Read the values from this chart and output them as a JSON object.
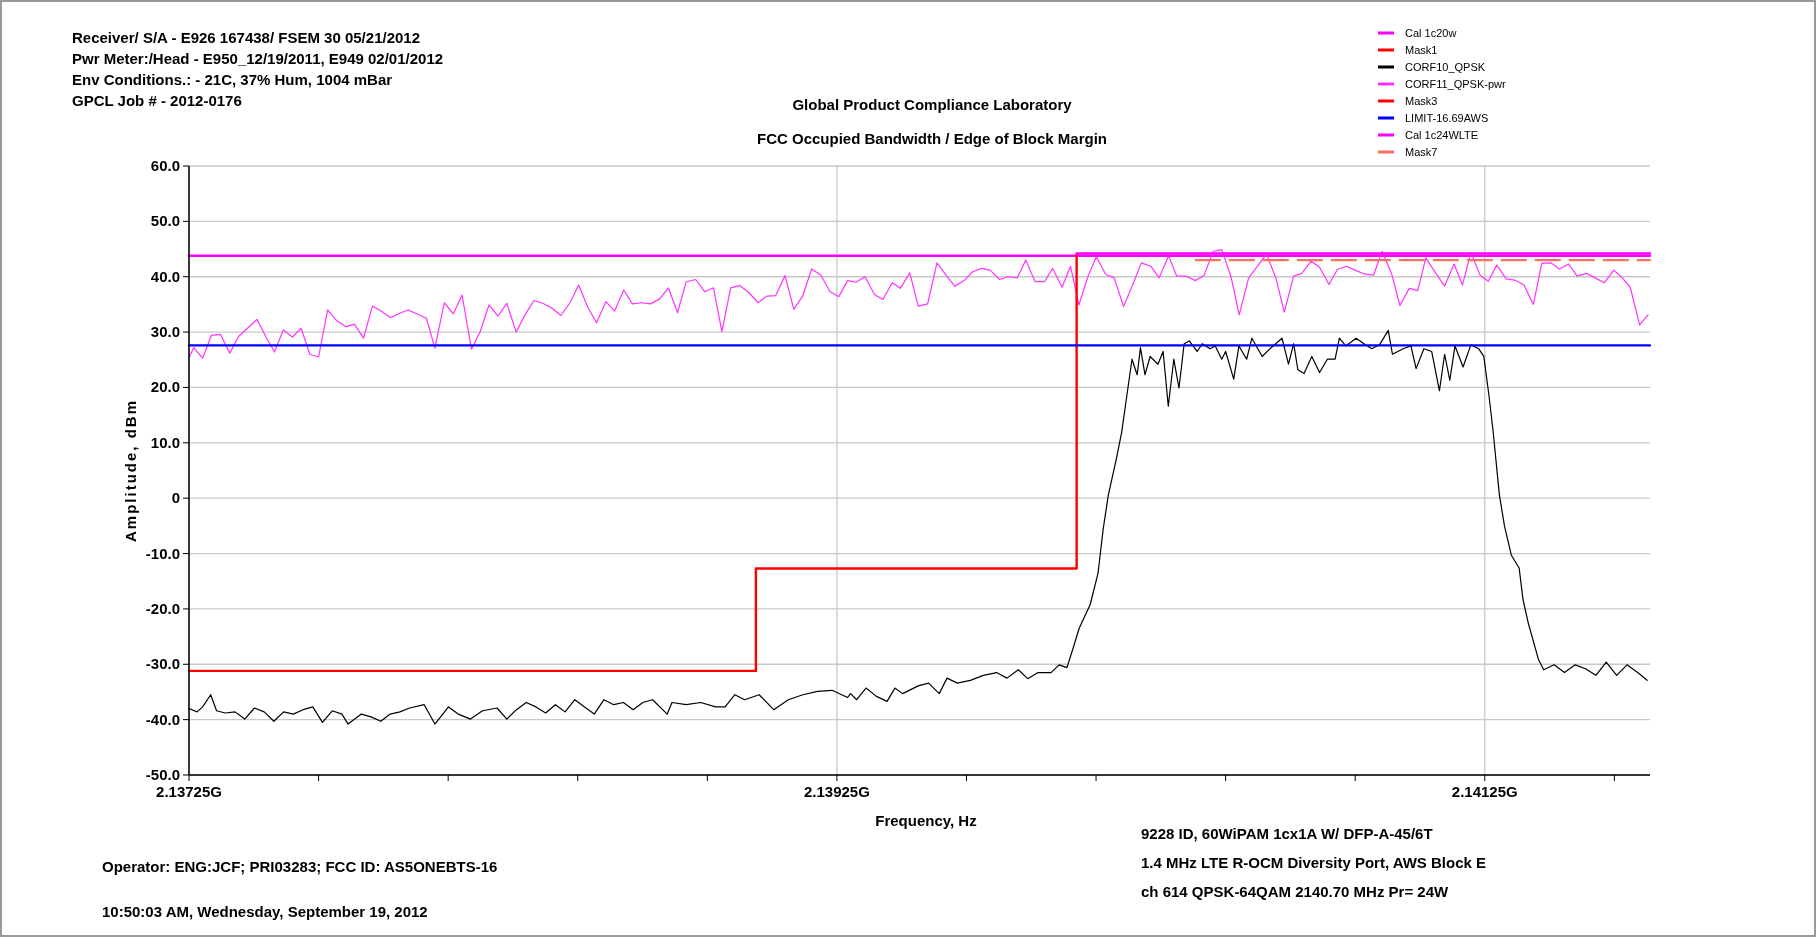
{
  "chart_data": {
    "type": "line",
    "title": "Global Product Compliance Laboratory",
    "subtitle": "FCC Occupied Bandwidth / Edge of Block Margin",
    "xlabel": "Frequency, Hz",
    "ylabel": "Amplitude, dBm",
    "annotations": [
      "Receiver/ S/A - E926 167438/ FSEM 30 05/21/2012",
      "Pwr Meter:/Head - E950_12/19/2011, E949 02/01/2012",
      "Env Conditions.: - 21C, 37% Hum,  1004 mBar",
      "GPCL Job #  - 2012-0176",
      "Operator:  ENG:JCF; PRI03283;  FCC ID: AS5ONEBTS-16",
      "10:50:03 AM, Wednesday, September 19, 2012",
      "9228 ID, 60WiPAM 1cx1A W/ DFP-A-45/6T",
      "1.4 MHz LTE R-OCM Diversity Port, AWS Block E",
      "ch 614 QPSK-64QAM 2140.70 MHz Pr= 24W"
    ],
    "xlim": [
      2.13725,
      2.14176
    ],
    "xticks": [
      {
        "value": 2.13725,
        "label": "2.13725G"
      },
      {
        "value": 2.13765,
        "label": null
      },
      {
        "value": 2.13805,
        "label": null
      },
      {
        "value": 2.13845,
        "label": null
      },
      {
        "value": 2.13885,
        "label": null
      },
      {
        "value": 2.13925,
        "label": "2.13925G"
      },
      {
        "value": 2.13965,
        "label": null
      },
      {
        "value": 2.14005,
        "label": null
      },
      {
        "value": 2.14045,
        "label": null
      },
      {
        "value": 2.14085,
        "label": null
      },
      {
        "value": 2.14125,
        "label": "2.14125G"
      },
      {
        "value": 2.14165,
        "label": null
      }
    ],
    "ylim": [
      -50,
      60
    ],
    "yticks": [
      {
        "value": 60,
        "label": "60.0"
      },
      {
        "value": 50,
        "label": "50.0"
      },
      {
        "value": 40,
        "label": "40.0"
      },
      {
        "value": 30,
        "label": "30.0"
      },
      {
        "value": 20,
        "label": "20.0"
      },
      {
        "value": 10,
        "label": "10.0"
      },
      0,
      {
        "value": -10,
        "label": "-10.0"
      },
      {
        "value": -20,
        "label": "-20.0"
      },
      {
        "value": -30,
        "label": "-30.0"
      },
      {
        "value": -40,
        "label": "-40.0"
      },
      {
        "value": -50,
        "label": "-50.0"
      }
    ],
    "grid": true,
    "legend": "top right",
    "series": [
      {
        "name": "Cal 1c20w",
        "color": "#ff00ff",
        "x": [
          2.13725,
          2.14176
        ],
        "values": [
          43.8,
          43.8
        ]
      },
      {
        "name": "Mask1",
        "color": "#ff0000",
        "x": [
          2.13725,
          2.139
        ],
        "values": [
          -31.2,
          -31.2
        ]
      },
      {
        "name": "CORF10_QPSK",
        "color": "#000000",
        "x": [
          2.13725,
          2.137275,
          2.137292,
          2.137317,
          2.137335,
          2.137362,
          2.137392,
          2.137422,
          2.137452,
          2.137482,
          2.137512,
          2.137542,
          2.137572,
          2.137602,
          2.137632,
          2.137662,
          2.137692,
          2.137722,
          2.137741,
          2.137782,
          2.137812,
          2.137842,
          2.137871,
          2.137901,
          2.137931,
          2.137976,
          2.138009,
          2.138051,
          2.138081,
          2.138119,
          2.138156,
          2.138201,
          2.138231,
          2.138261,
          2.138291,
          2.138321,
          2.138351,
          2.138381,
          2.138411,
          2.138441,
          2.138471,
          2.138501,
          2.138531,
          2.138561,
          2.138591,
          2.138621,
          2.138651,
          2.138681,
          2.138726,
          2.138741,
          2.138785,
          2.13883,
          2.138875,
          2.138905,
          2.138935,
          2.138965,
          2.13901,
          2.139055,
          2.1391,
          2.139145,
          2.13919,
          2.139235,
          2.139283,
          2.139292,
          2.139311,
          2.13934,
          2.139372,
          2.139405,
          2.139429,
          2.139453,
          2.139501,
          2.139533,
          2.139566,
          2.13959,
          2.139622,
          2.139662,
          2.139702,
          2.139743,
          2.139775,
          2.13981,
          2.139839,
          2.139871,
          2.139911,
          2.139936,
          2.13996,
          2.139976,
          2.139998,
          2.140032,
          2.140056,
          2.140072,
          2.140088,
          2.140113,
          2.140129,
          2.140145,
          2.140161,
          2.140177,
          2.140187,
          2.140201,
          2.140217,
          2.140241,
          2.140257,
          2.140273,
          2.14029,
          2.140306,
          2.140322,
          2.140338,
          2.140362,
          2.140378,
          2.140402,
          2.140418,
          2.140438,
          2.14045,
          2.140475,
          2.140491,
          2.140515,
          2.140531,
          2.140563,
          2.140587,
          2.140624,
          2.140644,
          2.14066,
          2.140673,
          2.140692,
          2.140716,
          2.14074,
          2.140764,
          2.140788,
          2.140801,
          2.140821,
          2.140853,
          2.140877,
          2.140901,
          2.140925,
          2.140952,
          2.140965,
          2.140998,
          2.141022,
          2.141038,
          2.141062,
          2.141086,
          2.14111,
          2.141126,
          2.141142,
          2.141158,
          2.141183,
          2.141207,
          2.141231,
          2.141247,
          2.141263,
          2.141276,
          2.141295,
          2.141311,
          2.141332,
          2.141356,
          2.141368,
          2.141384,
          2.141416,
          2.141432,
          2.141464,
          2.141496,
          2.141529,
          2.141561,
          2.141593,
          2.141625,
          2.141657,
          2.141689,
          2.141722,
          2.141751
        ],
        "values": [
          -38.0,
          -38.6,
          -37.7,
          -35.5,
          -38.4,
          -38.8,
          -38.6,
          -39.9,
          -37.9,
          -38.6,
          -40.3,
          -38.6,
          -39.0,
          -38.2,
          -37.7,
          -40.5,
          -38.4,
          -39.0,
          -40.8,
          -39.0,
          -39.5,
          -40.3,
          -39.0,
          -38.6,
          -37.9,
          -37.3,
          -40.8,
          -37.7,
          -39.0,
          -39.9,
          -38.4,
          -37.9,
          -39.9,
          -38.2,
          -36.9,
          -37.7,
          -38.8,
          -37.3,
          -38.6,
          -36.4,
          -37.7,
          -39.0,
          -36.4,
          -37.3,
          -36.9,
          -38.2,
          -36.9,
          -36.4,
          -39.0,
          -36.9,
          -37.3,
          -36.9,
          -37.7,
          -37.7,
          -35.5,
          -36.4,
          -35.5,
          -38.2,
          -36.4,
          -35.5,
          -34.9,
          -34.7,
          -36.0,
          -35.3,
          -36.4,
          -34.3,
          -35.8,
          -36.7,
          -34.3,
          -35.3,
          -33.9,
          -33.4,
          -35.3,
          -32.5,
          -33.4,
          -32.9,
          -32.0,
          -31.5,
          -32.5,
          -31.0,
          -32.6,
          -31.5,
          -31.5,
          -30.1,
          -30.6,
          -27.7,
          -23.5,
          -19.2,
          -13.6,
          -5.6,
          0.6,
          7.2,
          11.9,
          18.5,
          25.1,
          22.3,
          27.2,
          22.3,
          25.6,
          24.2,
          26.5,
          16.6,
          25.1,
          19.9,
          27.9,
          28.4,
          26.5,
          27.9,
          27.0,
          27.5,
          25.1,
          26.5,
          21.5,
          27.5,
          25.1,
          28.9,
          25.6,
          27.0,
          28.9,
          24.2,
          27.9,
          23.2,
          22.5,
          25.6,
          22.7,
          25.1,
          25.1,
          28.9,
          27.5,
          28.9,
          27.9,
          27.0,
          27.7,
          30.3,
          26.0,
          27.0,
          27.5,
          23.4,
          27.0,
          26.5,
          19.4,
          26.0,
          21.3,
          27.5,
          23.7,
          27.7,
          27.0,
          25.6,
          18.5,
          11.9,
          0.6,
          -5.1,
          -10.3,
          -12.6,
          -18.3,
          -22.5,
          -29.2,
          -31.0,
          -30.1,
          -31.5,
          -30.1,
          -30.8,
          -32.0,
          -29.6,
          -32.0,
          -30.1,
          -31.5,
          -32.9
        ]
      },
      {
        "name": "CORF11_QPSK-pwr",
        "color": "#ff33ff",
        "x": [
          2.13725,
          2.137265,
          2.137292,
          2.137319,
          2.137347,
          2.137376,
          2.137403,
          2.13746,
          2.137487,
          2.137514,
          2.137541,
          2.137569,
          2.137596,
          2.137623,
          2.13765,
          2.137678,
          2.137705,
          2.137734,
          2.137761,
          2.137789,
          2.137816,
          2.137845,
          2.137872,
          2.1379,
          2.137927,
          2.137983,
          2.138009,
          2.138038,
          2.138066,
          2.138093,
          2.138122,
          2.138149,
          2.138176,
          2.138204,
          2.138231,
          2.13826,
          2.138287,
          2.138315,
          2.138342,
          2.138371,
          2.138398,
          2.138426,
          2.138453,
          2.138481,
          2.138508,
          2.138537,
          2.138564,
          2.138592,
          2.138619,
          2.138648,
          2.138675,
          2.138703,
          2.13873,
          2.138758,
          2.138785,
          2.138814,
          2.138842,
          2.138869,
          2.138895,
          2.138922,
          2.13895,
          2.138977,
          2.139007,
          2.139034,
          2.139061,
          2.13909,
          2.139117,
          2.139145,
          2.139172,
          2.1392,
          2.139229,
          2.139256,
          2.139283,
          2.139292,
          2.139308,
          2.139337,
          2.139366,
          2.139392,
          2.139421,
          2.139446,
          2.139475,
          2.139501,
          2.13953,
          2.139559,
          2.139588,
          2.139614,
          2.139643,
          2.139669,
          2.139697,
          2.139723,
          2.139752,
          2.139778,
          2.139807,
          2.139833,
          2.139862,
          2.139891,
          2.139916,
          2.139945,
          2.139971,
          2.139997,
          2.140026,
          2.140051,
          2.14008,
          2.140106,
          2.140135,
          2.140164,
          2.14019,
          2.140219,
          2.140245,
          2.140274,
          2.140299,
          2.140328,
          2.140357,
          2.140383,
          2.140412,
          2.140438,
          2.140467,
          2.140492,
          2.140521,
          2.140547,
          2.140576,
          2.140605,
          2.140631,
          2.14066,
          2.140685,
          2.140714,
          2.14074,
          2.140769,
          2.140795,
          2.140824,
          2.140853,
          2.140878,
          2.140907,
          2.140933,
          2.140962,
          2.140988,
          2.141017,
          2.141043,
          2.141068,
          2.141097,
          2.141126,
          2.141155,
          2.141181,
          2.141207,
          2.141236,
          2.141261,
          2.141287,
          2.141316,
          2.141342,
          2.141371,
          2.1414,
          2.141426,
          2.141455,
          2.14148,
          2.141509,
          2.141535,
          2.141564,
          2.141593,
          2.141619,
          2.141648,
          2.141673,
          2.141699,
          2.141728,
          2.141754
        ],
        "values": [
          25.4,
          27.2,
          25.3,
          29.4,
          29.6,
          26.2,
          29.2,
          32.3,
          29.2,
          26.4,
          30.4,
          29.1,
          30.7,
          26.0,
          25.5,
          34.0,
          32.1,
          31.0,
          31.4,
          28.9,
          34.7,
          33.7,
          32.6,
          33.4,
          34.0,
          32.5,
          27.1,
          35.3,
          33.3,
          36.7,
          26.9,
          30.1,
          34.9,
          32.9,
          35.2,
          30.0,
          33.1,
          35.7,
          35.2,
          34.3,
          33.0,
          35.3,
          38.5,
          34.5,
          31.7,
          35.5,
          33.8,
          37.6,
          35.1,
          35.3,
          35.1,
          36.0,
          38.0,
          33.5,
          39.1,
          39.5,
          37.3,
          38.0,
          30.1,
          38.0,
          38.4,
          37.2,
          35.3,
          36.5,
          36.6,
          40.2,
          34.1,
          36.6,
          41.4,
          40.3,
          37.3,
          36.4,
          39.3,
          39.2,
          39.0,
          40.0,
          36.8,
          35.9,
          38.9,
          37.9,
          40.7,
          34.7,
          35.1,
          42.5,
          40.2,
          38.3,
          39.3,
          40.9,
          41.5,
          41.2,
          39.5,
          40.0,
          39.8,
          43.0,
          39.1,
          39.1,
          41.5,
          38.1,
          41.9,
          34.9,
          40.2,
          43.6,
          40.4,
          39.8,
          34.6,
          38.7,
          42.5,
          41.9,
          39.8,
          43.8,
          40.1,
          40.1,
          39.3,
          40.2,
          44.6,
          44.9,
          39.9,
          33.1,
          39.8,
          41.8,
          44.1,
          39.8,
          33.6,
          40.1,
          40.6,
          42.8,
          41.7,
          38.6,
          41.3,
          41.9,
          41.1,
          40.5,
          40.3,
          44.6,
          40.6,
          34.8,
          37.9,
          37.5,
          43.4,
          40.8,
          38.3,
          42.3,
          38.5,
          44.4,
          40.2,
          39.2,
          42.1,
          39.6,
          39.4,
          38.5,
          35.0,
          42.4,
          42.5,
          41.4,
          42.3,
          40.1,
          40.6,
          39.7,
          38.9,
          41.2,
          39.9,
          38.1,
          31.3,
          33.1
        ]
      },
      {
        "name": "Mask3",
        "color": "#ff0000",
        "x": [
          2.139,
          2.139,
          2.13999,
          2.13999
        ],
        "values": [
          -31.2,
          -12.7,
          -12.7,
          44
        ]
      },
      {
        "name": "LIMIT-16.69AWS",
        "color": "#0000ff",
        "x": [
          2.13725,
          2.14176
        ],
        "values": [
          27.6,
          27.6
        ]
      },
      {
        "name": "Cal 1c24WLTE",
        "color": "#ff00ff",
        "x": [
          2.13999,
          2.14176
        ],
        "values": [
          44.2,
          44.2
        ]
      },
      {
        "name": "Mask7",
        "color": "#ff6f61",
        "line_style": "dashed",
        "x": [
          2.140358,
          2.14176
        ],
        "values": [
          43.0,
          43.0
        ]
      }
    ]
  }
}
